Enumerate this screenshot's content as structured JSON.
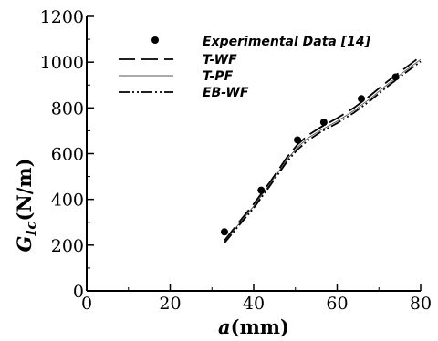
{
  "chart_data": {
    "type": "line",
    "xlabel": {
      "symbol": "a",
      "unit": "(mm)"
    },
    "ylabel": {
      "symbol": "G",
      "subscript": "Ic",
      "unit": "(N/m)"
    },
    "xlim": [
      0,
      80
    ],
    "ylim": [
      0,
      1200
    ],
    "x_ticks": [
      0,
      20,
      40,
      60,
      80
    ],
    "y_ticks": [
      0,
      200,
      400,
      600,
      800,
      1000,
      1200
    ],
    "grid": false,
    "legend_position": "top-left",
    "series": [
      {
        "name": "Experimental Data [14]",
        "style": "markers",
        "x": [
          33,
          41.8,
          50.5,
          56.8,
          65.8,
          74
        ],
        "y": [
          258,
          440,
          660,
          737,
          840,
          935
        ]
      },
      {
        "name": "T-WF",
        "style": "long-dash",
        "x": [
          33,
          36,
          40,
          44,
          48,
          50.5,
          53,
          56,
          60,
          64,
          68,
          72,
          76,
          80
        ],
        "y": [
          220,
          290,
          380,
          478,
          585,
          640,
          680,
          715,
          755,
          800,
          855,
          915,
          970,
          1025
        ]
      },
      {
        "name": "T-PF",
        "style": "thin-solid",
        "x": [
          33,
          36,
          40,
          44,
          48,
          50.5,
          53,
          56,
          60,
          64,
          68,
          72,
          76,
          80
        ],
        "y": [
          215,
          282,
          370,
          470,
          575,
          628,
          668,
          702,
          742,
          788,
          842,
          902,
          958,
          1012
        ]
      },
      {
        "name": "EB-WF",
        "style": "dash-dot-dot",
        "x": [
          33,
          36,
          40,
          44,
          48,
          50.5,
          53,
          56,
          60,
          64,
          68,
          72,
          76,
          80
        ],
        "y": [
          210,
          276,
          362,
          462,
          566,
          618,
          658,
          694,
          733,
          779,
          833,
          893,
          949,
          1003
        ]
      }
    ]
  }
}
